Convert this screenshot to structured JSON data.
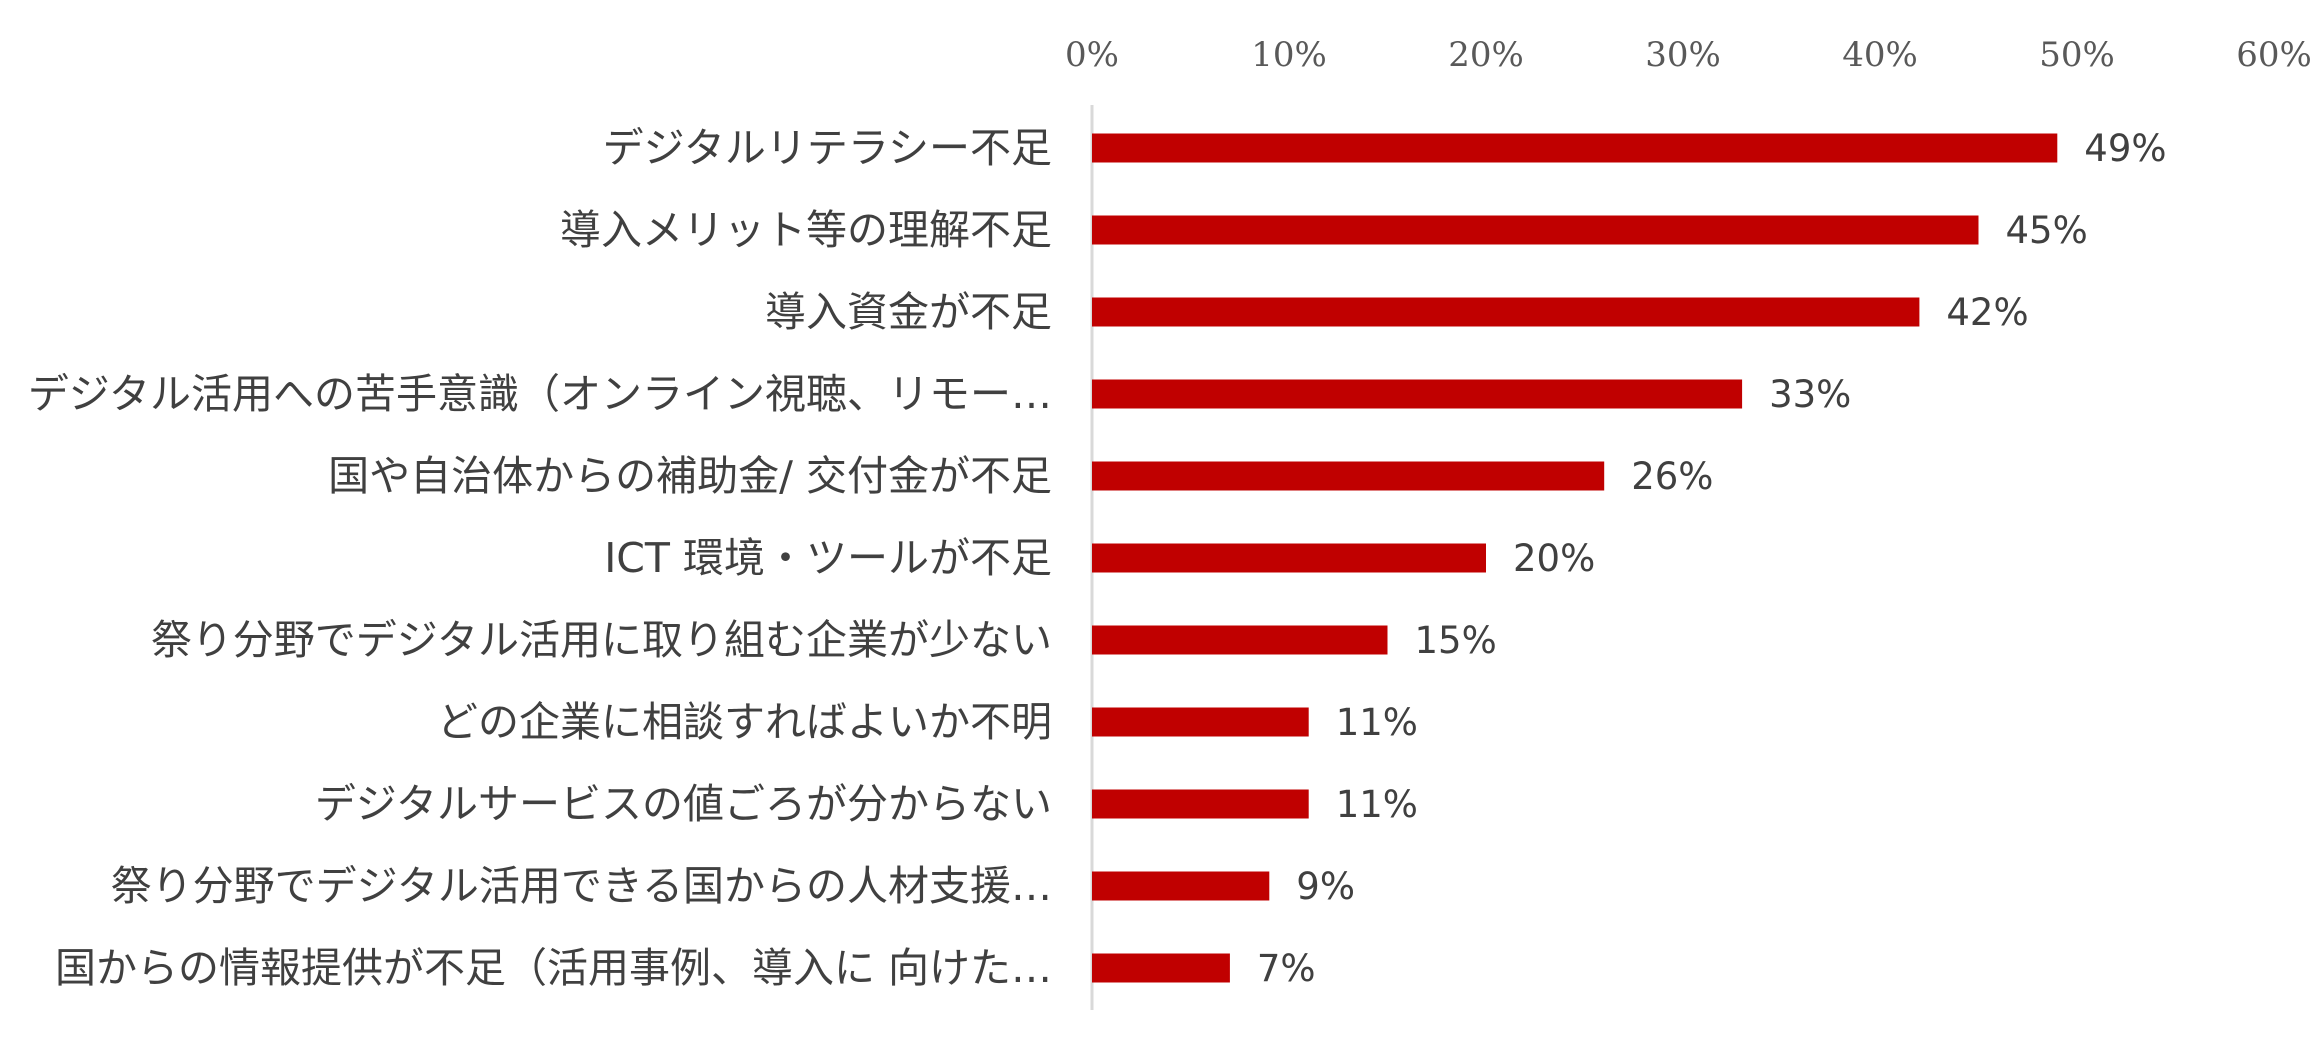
{
  "chart_data": {
    "type": "bar",
    "orientation": "horizontal",
    "categories": [
      "デジタルリテラシー不足",
      "導入メリット等の理解不足",
      "導入資金が不足",
      "デジタル活用への苦手意識（オンライン視聴、リモー…",
      "国や自治体からの補助金/ 交付金が不足",
      "ICT 環境・ツールが不足",
      "祭り分野でデジタル活用に取り組む企業が少ない",
      "どの企業に相談すればよいか不明",
      "デジタルサービスの値ごろが分からない",
      "祭り分野でデジタル活用できる国からの人材支援…",
      "国からの情報提供が不足（活用事例、導入に 向けた…"
    ],
    "values": [
      49,
      45,
      42,
      33,
      26,
      20,
      15,
      11,
      11,
      9,
      7
    ],
    "data_labels": [
      "49%",
      "45%",
      "42%",
      "33%",
      "26%",
      "20%",
      "15%",
      "11%",
      "11%",
      "9%",
      "7%"
    ],
    "x_ticks": [
      "0%",
      "10%",
      "20%",
      "30%",
      "40%",
      "50%",
      "60%"
    ],
    "xlim": [
      0,
      60
    ],
    "x_axis_position": "top",
    "grid": false,
    "legend": "none",
    "title": "",
    "xlabel": "",
    "ylabel": "",
    "bar_color": "#C00000"
  }
}
